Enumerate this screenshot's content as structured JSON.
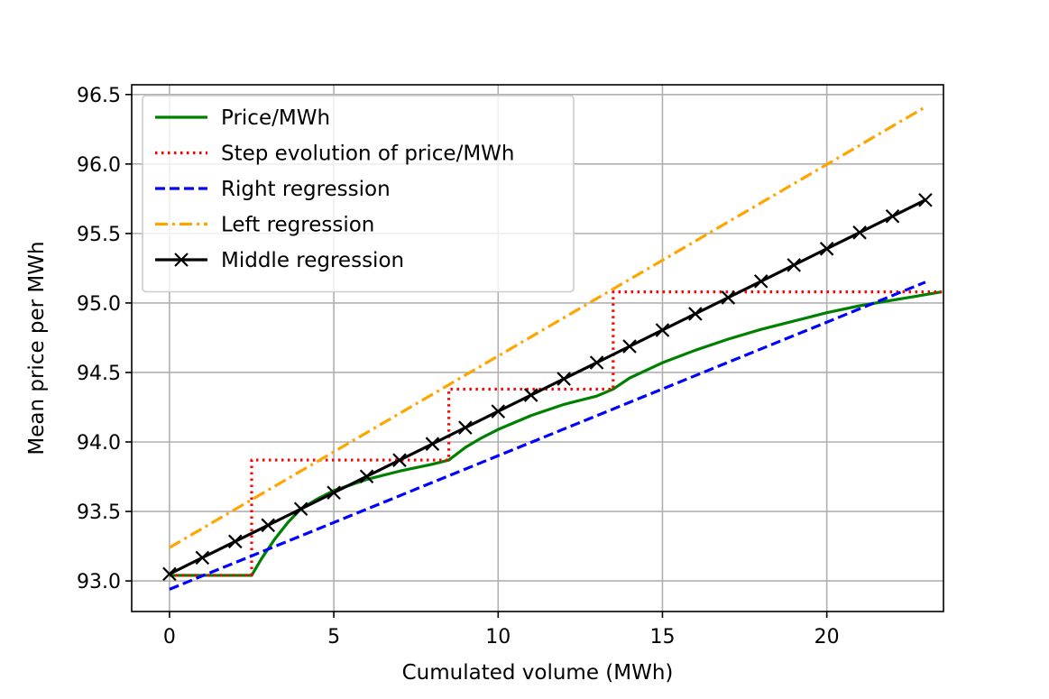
{
  "chart_data": {
    "type": "line",
    "title": "",
    "xlabel": "Cumulated volume (MWh)",
    "ylabel": "Mean price per MWh",
    "xlim": [
      -1.15,
      23.55
    ],
    "ylim": [
      92.78,
      96.57
    ],
    "xticks": [
      0,
      5,
      10,
      15,
      20
    ],
    "xtick_labels": [
      "0",
      "5",
      "10",
      "15",
      "20"
    ],
    "yticks": [
      93.0,
      93.5,
      94.0,
      94.5,
      95.0,
      95.5,
      96.0,
      96.5
    ],
    "ytick_labels": [
      "93.0",
      "93.5",
      "94.0",
      "94.5",
      "95.0",
      "95.5",
      "96.0",
      "96.5"
    ],
    "grid": true,
    "legend_position": "top-left",
    "series": [
      {
        "name": "Price/MWh",
        "color": "#008000",
        "style": "solid",
        "marker": "none",
        "x": [
          0,
          2.5,
          2.8,
          3.2,
          3.6,
          4.0,
          4.5,
          5.0,
          6.0,
          7.0,
          8.0,
          8.5,
          9.0,
          9.5,
          10.0,
          11.0,
          12.0,
          13.0,
          13.5,
          14.0,
          15.0,
          16.0,
          17.0,
          18.0,
          19.0,
          20.0,
          21.0,
          22.0,
          23.0,
          23.5
        ],
        "y": [
          93.04,
          93.04,
          93.16,
          93.3,
          93.42,
          93.52,
          93.59,
          93.65,
          93.73,
          93.79,
          93.84,
          93.87,
          93.96,
          94.03,
          94.09,
          94.19,
          94.27,
          94.33,
          94.38,
          94.46,
          94.57,
          94.66,
          94.74,
          94.81,
          94.87,
          94.93,
          94.98,
          95.02,
          95.06,
          95.08
        ]
      },
      {
        "name": "Step evolution of price/MWh",
        "color": "#ff0000",
        "style": "dotted",
        "marker": "none",
        "x": [
          0,
          2.5,
          2.5,
          8.5,
          8.5,
          13.5,
          13.5,
          23.5
        ],
        "y": [
          93.04,
          93.04,
          93.87,
          93.87,
          94.38,
          94.38,
          95.08,
          95.08
        ]
      },
      {
        "name": "Right regression",
        "color": "#0000ff",
        "style": "dashed",
        "marker": "none",
        "x": [
          0,
          23
        ],
        "y": [
          92.94,
          95.15
        ]
      },
      {
        "name": "Left regression",
        "color": "#ffa500",
        "style": "dashdot",
        "marker": "none",
        "x": [
          0,
          23
        ],
        "y": [
          93.24,
          96.41
        ]
      },
      {
        "name": "Middle regression",
        "color": "#000000",
        "style": "solid",
        "marker": "x",
        "x": [
          0,
          1,
          2,
          3,
          4,
          5,
          6,
          7,
          8,
          9,
          10,
          11,
          12,
          13,
          14,
          15,
          16,
          17,
          18,
          19,
          20,
          21,
          22,
          23
        ],
        "y": [
          93.05,
          93.167,
          93.284,
          93.401,
          93.518,
          93.635,
          93.752,
          93.869,
          93.986,
          94.103,
          94.22,
          94.337,
          94.454,
          94.571,
          94.688,
          94.805,
          94.922,
          95.039,
          95.156,
          95.273,
          95.39,
          95.507,
          95.624,
          95.741
        ]
      }
    ]
  }
}
